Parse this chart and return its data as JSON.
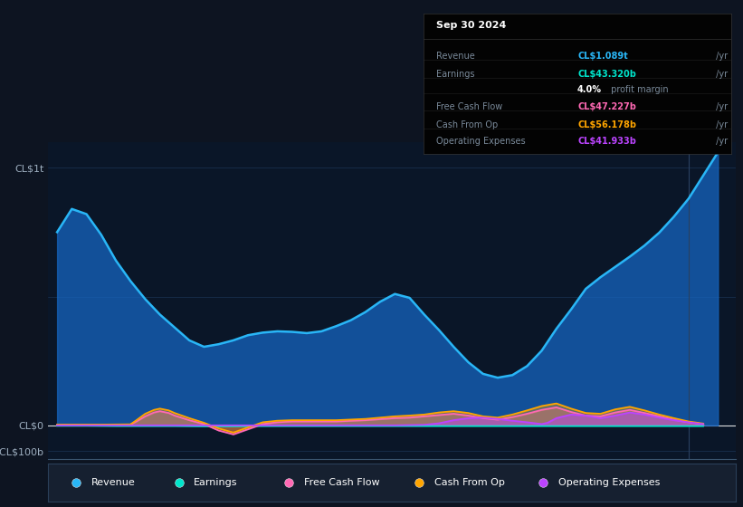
{
  "bg_color": "#0d1421",
  "plot_bg_color": "#0a1628",
  "title_box_bg": "#000000",
  "title_box": {
    "date": "Sep 30 2024",
    "rows": [
      {
        "label": "Revenue",
        "value": "CL$1.089t",
        "value_color": "#29b6f6"
      },
      {
        "label": "Earnings",
        "value": "CL$43.320b",
        "value_color": "#00e5cc"
      },
      {
        "label": "",
        "value_bold": "4.0%",
        "value_normal": " profit margin"
      },
      {
        "label": "Free Cash Flow",
        "value": "CL$47.227b",
        "value_color": "#ff69b4"
      },
      {
        "label": "Cash From Op",
        "value": "CL$56.178b",
        "value_color": "#ffa500"
      },
      {
        "label": "Operating Expenses",
        "value": "CL$41.933b",
        "value_color": "#bb44ff"
      }
    ]
  },
  "ylabel_top": "CL$1t",
  "ylabel_zero": "CL$0",
  "ylabel_bottom": "-CL$100b",
  "ylim": [
    -130,
    1100
  ],
  "xlim": [
    2013.6,
    2025.3
  ],
  "xticks": [
    2014,
    2015,
    2016,
    2017,
    2018,
    2019,
    2020,
    2021,
    2022,
    2023,
    2024
  ],
  "revenue_x": [
    2013.75,
    2014.0,
    2014.25,
    2014.5,
    2014.75,
    2015.0,
    2015.25,
    2015.5,
    2015.75,
    2016.0,
    2016.25,
    2016.5,
    2016.75,
    2017.0,
    2017.25,
    2017.5,
    2017.75,
    2018.0,
    2018.25,
    2018.5,
    2018.75,
    2019.0,
    2019.25,
    2019.5,
    2019.75,
    2020.0,
    2020.25,
    2020.5,
    2020.75,
    2021.0,
    2021.25,
    2021.5,
    2021.75,
    2022.0,
    2022.25,
    2022.5,
    2022.75,
    2023.0,
    2023.25,
    2023.5,
    2023.75,
    2024.0,
    2024.25,
    2024.5,
    2024.75,
    2025.0
  ],
  "revenue_y": [
    750,
    840,
    820,
    740,
    640,
    560,
    490,
    430,
    380,
    330,
    305,
    315,
    330,
    350,
    360,
    365,
    363,
    358,
    365,
    385,
    408,
    440,
    480,
    510,
    495,
    430,
    370,
    305,
    245,
    200,
    185,
    195,
    230,
    290,
    375,
    450,
    530,
    575,
    615,
    655,
    698,
    748,
    810,
    880,
    970,
    1060
  ],
  "revenue_color": "#29b6f6",
  "revenue_fill": "#1565c0",
  "earnings_x": [
    2013.75,
    2014.25,
    2014.75,
    2015.25,
    2015.75,
    2016.25,
    2016.75,
    2017.25,
    2017.75,
    2018.25,
    2018.75,
    2019.25,
    2019.75,
    2020.25,
    2020.75,
    2021.25,
    2021.75,
    2022.25,
    2022.75,
    2023.25,
    2023.75,
    2024.25,
    2024.75
  ],
  "earnings_y": [
    -2,
    -2,
    -3,
    -3,
    -3,
    -4,
    -4,
    -3,
    -3,
    -3,
    -3,
    -3,
    -3,
    -3,
    -3,
    -3,
    -3,
    -3,
    -3,
    -3,
    -3,
    -3,
    -3
  ],
  "earnings_color": "#00e5cc",
  "fcf_x": [
    2013.75,
    2014.0,
    2014.5,
    2015.0,
    2015.1,
    2015.25,
    2015.4,
    2015.5,
    2015.65,
    2015.75,
    2016.0,
    2016.25,
    2016.5,
    2016.75,
    2017.0,
    2017.25,
    2017.5,
    2017.75,
    2018.0,
    2018.5,
    2019.0,
    2019.5,
    2019.75,
    2020.0,
    2020.25,
    2020.5,
    2020.75,
    2021.0,
    2021.25,
    2021.5,
    2021.75,
    2022.0,
    2022.25,
    2022.5,
    2022.75,
    2023.0,
    2023.25,
    2023.5,
    2023.75,
    2024.0,
    2024.25,
    2024.5,
    2024.75
  ],
  "fcf_y": [
    2,
    2,
    2,
    3,
    15,
    35,
    50,
    55,
    48,
    38,
    20,
    5,
    -20,
    -35,
    -15,
    5,
    12,
    15,
    15,
    15,
    20,
    28,
    30,
    35,
    40,
    45,
    38,
    28,
    22,
    32,
    45,
    60,
    70,
    52,
    38,
    35,
    50,
    60,
    48,
    35,
    22,
    12,
    5
  ],
  "fcf_color": "#ff69b4",
  "cfo_x": [
    2013.75,
    2014.0,
    2014.5,
    2015.0,
    2015.1,
    2015.25,
    2015.4,
    2015.5,
    2015.65,
    2015.75,
    2016.0,
    2016.25,
    2016.5,
    2016.75,
    2017.0,
    2017.25,
    2017.5,
    2017.75,
    2018.0,
    2018.5,
    2019.0,
    2019.5,
    2019.75,
    2020.0,
    2020.25,
    2020.5,
    2020.75,
    2021.0,
    2021.25,
    2021.5,
    2021.75,
    2022.0,
    2022.25,
    2022.5,
    2022.75,
    2023.0,
    2023.25,
    2023.5,
    2023.75,
    2024.0,
    2024.25,
    2024.5,
    2024.75
  ],
  "cfo_y": [
    3,
    3,
    3,
    4,
    20,
    45,
    60,
    65,
    58,
    48,
    28,
    10,
    -12,
    -28,
    -8,
    12,
    18,
    20,
    20,
    20,
    25,
    35,
    38,
    42,
    50,
    55,
    48,
    35,
    30,
    42,
    58,
    75,
    85,
    65,
    48,
    45,
    62,
    72,
    58,
    42,
    28,
    15,
    7
  ],
  "cfo_color": "#ffa500",
  "opex_x": [
    2013.75,
    2014.0,
    2014.5,
    2015.0,
    2015.5,
    2016.0,
    2016.5,
    2017.0,
    2017.5,
    2018.0,
    2018.5,
    2019.0,
    2019.5,
    2020.0,
    2020.25,
    2020.5,
    2020.75,
    2021.0,
    2021.25,
    2021.5,
    2021.75,
    2022.0,
    2022.1,
    2022.25,
    2022.5,
    2022.75,
    2023.0,
    2023.25,
    2023.5,
    2023.75,
    2024.0,
    2024.25,
    2024.5,
    2024.75
  ],
  "opex_y": [
    0,
    0,
    0,
    0,
    0,
    0,
    0,
    0,
    0,
    0,
    0,
    0,
    0,
    2,
    8,
    20,
    28,
    30,
    25,
    18,
    12,
    5,
    10,
    28,
    42,
    38,
    28,
    38,
    50,
    42,
    30,
    20,
    12,
    5
  ],
  "opex_color": "#bb44ff",
  "grid_color": "#1e3a5f",
  "text_color": "#9eafc0",
  "zero_line_color": "#e0e0e0",
  "vline_color": "#2a4060",
  "legend_bg": "#162030",
  "legend_border": "#2a3f58"
}
